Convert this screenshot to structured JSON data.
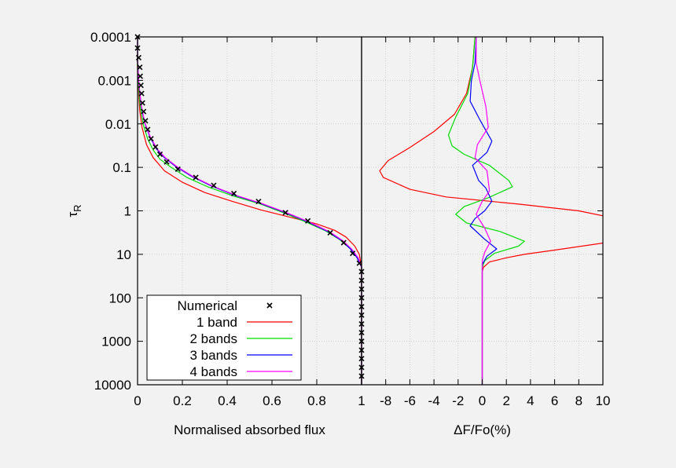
{
  "chart_data": [
    {
      "type": "line",
      "panel": "left",
      "xlabel": "Normalised absorbed flux",
      "ylabel": "τ",
      "ylabel_subscript": "R",
      "xlim": [
        0,
        1
      ],
      "ylim": [
        0.0001,
        10000
      ],
      "y_scale": "log",
      "y_inverted": true,
      "grid": true,
      "x_ticks": [
        {
          "value": 0,
          "label": "0"
        },
        {
          "value": 0.2,
          "label": "0.2"
        },
        {
          "value": 0.4,
          "label": "0.4"
        },
        {
          "value": 0.6,
          "label": "0.6"
        },
        {
          "value": 0.8,
          "label": "0.8"
        },
        {
          "value": 1,
          "label": "1"
        }
      ],
      "y_ticks": [
        {
          "value": 0.0001,
          "label": "0.0001"
        },
        {
          "value": 0.001,
          "label": "0.001"
        },
        {
          "value": 0.01,
          "label": "0.01"
        },
        {
          "value": 0.1,
          "label": "0.1"
        },
        {
          "value": 1,
          "label": "1"
        },
        {
          "value": 10,
          "label": "10"
        },
        {
          "value": 100,
          "label": "100"
        },
        {
          "value": 1000,
          "label": "1000"
        },
        {
          "value": 10000,
          "label": "10000"
        }
      ],
      "legend": {
        "position": "bottom-left",
        "entries": [
          {
            "label": "Numerical",
            "marker": "x",
            "color": "#000000"
          },
          {
            "label": "1 band",
            "color": "#ff0000"
          },
          {
            "label": "2 bands",
            "color": "#00dd00"
          },
          {
            "label": "3 bands",
            "color": "#0000ff"
          },
          {
            "label": "4 bands",
            "color": "#ff00ff"
          }
        ]
      },
      "series": [
        {
          "name": "Numerical",
          "marker": "x",
          "color": "#000000",
          "points": [
            [
              0.0,
              0.0001
            ],
            [
              0.0,
              0.00018
            ],
            [
              0.005,
              0.0003
            ],
            [
              0.01,
              0.0005
            ],
            [
              0.012,
              0.0008
            ],
            [
              0.015,
              0.0013
            ],
            [
              0.018,
              0.002
            ],
            [
              0.022,
              0.0033
            ],
            [
              0.027,
              0.0052
            ],
            [
              0.035,
              0.0085
            ],
            [
              0.045,
              0.0135
            ],
            [
              0.06,
              0.022
            ],
            [
              0.08,
              0.034
            ],
            [
              0.1,
              0.05
            ],
            [
              0.13,
              0.075
            ],
            [
              0.18,
              0.11
            ],
            [
              0.26,
              0.17
            ],
            [
              0.34,
              0.26
            ],
            [
              0.43,
              0.4
            ],
            [
              0.54,
              0.61
            ],
            [
              0.66,
              1.1
            ],
            [
              0.76,
              1.7
            ],
            [
              0.86,
              3.2
            ],
            [
              0.92,
              5.4
            ],
            [
              0.96,
              9.5
            ],
            [
              0.99,
              16
            ],
            [
              1.0,
              25
            ],
            [
              1.0,
              40
            ],
            [
              1.0,
              63
            ],
            [
              1.0,
              100
            ],
            [
              1.0,
              160
            ],
            [
              1.0,
              250
            ],
            [
              1.0,
              400
            ],
            [
              1.0,
              630
            ],
            [
              1.0,
              1000
            ],
            [
              1.0,
              1600
            ],
            [
              1.0,
              2500
            ],
            [
              1.0,
              4000
            ],
            [
              1.0,
              6300
            ]
          ]
        },
        {
          "name": "1 band",
          "color": "#ff0000",
          "points": [
            [
              0.0,
              0.0001
            ],
            [
              0.0,
              0.0005
            ],
            [
              0.005,
              0.002
            ],
            [
              0.01,
              0.005
            ],
            [
              0.02,
              0.012
            ],
            [
              0.04,
              0.03
            ],
            [
              0.07,
              0.06
            ],
            [
              0.12,
              0.12
            ],
            [
              0.2,
              0.22
            ],
            [
              0.3,
              0.38
            ],
            [
              0.42,
              0.6
            ],
            [
              0.55,
              0.95
            ],
            [
              0.68,
              1.4
            ],
            [
              0.8,
              2.0
            ],
            [
              0.88,
              2.8
            ],
            [
              0.93,
              4.0
            ],
            [
              0.97,
              6.5
            ],
            [
              0.99,
              10
            ],
            [
              1.0,
              20
            ],
            [
              1.0,
              10000
            ]
          ]
        },
        {
          "name": "2 bands",
          "color": "#00dd00",
          "points": [
            [
              0.0,
              0.0001
            ],
            [
              0.0,
              0.0005
            ],
            [
              0.005,
              0.0015
            ],
            [
              0.012,
              0.004
            ],
            [
              0.025,
              0.01
            ],
            [
              0.045,
              0.022
            ],
            [
              0.07,
              0.04
            ],
            [
              0.1,
              0.065
            ],
            [
              0.15,
              0.1
            ],
            [
              0.22,
              0.17
            ],
            [
              0.32,
              0.29
            ],
            [
              0.43,
              0.46
            ],
            [
              0.55,
              0.7
            ],
            [
              0.65,
              1.1
            ],
            [
              0.75,
              1.8
            ],
            [
              0.84,
              2.9
            ],
            [
              0.9,
              4.5
            ],
            [
              0.95,
              7.5
            ],
            [
              0.98,
              12
            ],
            [
              1.0,
              20
            ],
            [
              1.0,
              10000
            ]
          ]
        },
        {
          "name": "3 bands",
          "color": "#0000ff",
          "points": [
            [
              0.0,
              0.0001
            ],
            [
              0.0,
              0.0004
            ],
            [
              0.006,
              0.0012
            ],
            [
              0.015,
              0.0035
            ],
            [
              0.03,
              0.009
            ],
            [
              0.055,
              0.02
            ],
            [
              0.085,
              0.038
            ],
            [
              0.12,
              0.06
            ],
            [
              0.17,
              0.095
            ],
            [
              0.24,
              0.16
            ],
            [
              0.33,
              0.27
            ],
            [
              0.44,
              0.45
            ],
            [
              0.55,
              0.68
            ],
            [
              0.66,
              1.1
            ],
            [
              0.76,
              1.8
            ],
            [
              0.85,
              3.0
            ],
            [
              0.91,
              4.8
            ],
            [
              0.95,
              7.5
            ],
            [
              0.98,
              12
            ],
            [
              1.0,
              20
            ],
            [
              1.0,
              10000
            ]
          ]
        },
        {
          "name": "4 bands",
          "color": "#ff00ff",
          "points": [
            [
              0.0,
              0.0001
            ],
            [
              0.0,
              0.0004
            ],
            [
              0.006,
              0.0012
            ],
            [
              0.016,
              0.0036
            ],
            [
              0.032,
              0.0092
            ],
            [
              0.057,
              0.02
            ],
            [
              0.088,
              0.038
            ],
            [
              0.124,
              0.06
            ],
            [
              0.174,
              0.095
            ],
            [
              0.245,
              0.16
            ],
            [
              0.335,
              0.27
            ],
            [
              0.445,
              0.45
            ],
            [
              0.555,
              0.68
            ],
            [
              0.665,
              1.1
            ],
            [
              0.765,
              1.8
            ],
            [
              0.855,
              3.0
            ],
            [
              0.915,
              4.8
            ],
            [
              0.955,
              7.5
            ],
            [
              0.985,
              12
            ],
            [
              1.0,
              20
            ],
            [
              1.0,
              10000
            ]
          ]
        }
      ]
    },
    {
      "type": "line",
      "panel": "right",
      "xlabel": "ΔF/Fo(%)",
      "xlim": [
        -10,
        10
      ],
      "ylim": [
        0.0001,
        10000
      ],
      "y_scale": "log",
      "y_inverted": true,
      "grid": true,
      "x_ticks": [
        {
          "value": -8,
          "label": "-8"
        },
        {
          "value": -6,
          "label": "-6"
        },
        {
          "value": -4,
          "label": "-4"
        },
        {
          "value": -2,
          "label": "-2"
        },
        {
          "value": 0,
          "label": "0"
        },
        {
          "value": 2,
          "label": "2"
        },
        {
          "value": 4,
          "label": "4"
        },
        {
          "value": 6,
          "label": "6"
        },
        {
          "value": 8,
          "label": "8"
        },
        {
          "value": 10,
          "label": "10"
        }
      ],
      "series": [
        {
          "name": "1 band",
          "color": "#ff0000",
          "points": [
            [
              -0.6,
              0.0001
            ],
            [
              -0.8,
              0.0005
            ],
            [
              -1.3,
              0.002
            ],
            [
              -2.3,
              0.006
            ],
            [
              -4.0,
              0.015
            ],
            [
              -6.0,
              0.035
            ],
            [
              -7.8,
              0.07
            ],
            [
              -8.5,
              0.12
            ],
            [
              -8.2,
              0.17
            ],
            [
              -6.0,
              0.32
            ],
            [
              -3.0,
              0.48
            ],
            [
              3.0,
              0.7
            ],
            [
              8.0,
              1.0
            ],
            [
              10.0,
              1.3
            ]
          ],
          "points_lower": [
            [
              10.0,
              5.5
            ],
            [
              6.0,
              8.0
            ],
            [
              3.5,
              10
            ],
            [
              2.0,
              12
            ],
            [
              0.6,
              15
            ],
            [
              0.1,
              20
            ],
            [
              0.0,
              25
            ],
            [
              0.0,
              10000
            ]
          ]
        },
        {
          "name": "2 bands",
          "color": "#00dd00",
          "points": [
            [
              -0.6,
              0.0001
            ],
            [
              -0.8,
              0.0005
            ],
            [
              -1.2,
              0.002
            ],
            [
              -2.2,
              0.007
            ],
            [
              -2.8,
              0.018
            ],
            [
              -2.5,
              0.032
            ],
            [
              -1.5,
              0.05
            ],
            [
              0.6,
              0.09
            ],
            [
              2.2,
              0.2
            ],
            [
              2.5,
              0.28
            ],
            [
              0.5,
              0.5
            ],
            [
              -1.5,
              0.8
            ],
            [
              -2.2,
              1.2
            ],
            [
              -1.3,
              1.9
            ],
            [
              1.5,
              3.0
            ],
            [
              3.5,
              5.0
            ],
            [
              3.0,
              6.5
            ],
            [
              1.0,
              9.5
            ],
            [
              0.2,
              14
            ],
            [
              0.0,
              20
            ],
            [
              0.0,
              10000
            ]
          ]
        },
        {
          "name": "3 bands",
          "color": "#0000ff",
          "points": [
            [
              -0.5,
              0.0001
            ],
            [
              -0.6,
              0.0004
            ],
            [
              -0.9,
              0.001
            ],
            [
              -1.0,
              0.003
            ],
            [
              -0.2,
              0.008
            ],
            [
              0.8,
              0.025
            ],
            [
              0.4,
              0.045
            ],
            [
              -0.8,
              0.09
            ],
            [
              -0.3,
              0.2
            ],
            [
              0.3,
              0.3
            ],
            [
              0.8,
              0.6
            ],
            [
              0.2,
              1.0
            ],
            [
              -0.6,
              1.5
            ],
            [
              -1.0,
              2.2
            ],
            [
              0.2,
              4.5
            ],
            [
              1.2,
              7.5
            ],
            [
              0.4,
              11
            ],
            [
              0.0,
              17
            ],
            [
              0.0,
              10000
            ]
          ]
        },
        {
          "name": "4 bands",
          "color": "#ff00ff",
          "points": [
            [
              -0.5,
              0.0001
            ],
            [
              -0.5,
              0.0004
            ],
            [
              -0.2,
              0.001
            ],
            [
              0.3,
              0.004
            ],
            [
              0.5,
              0.012
            ],
            [
              -0.4,
              0.03
            ],
            [
              -0.6,
              0.06
            ],
            [
              0.4,
              0.12
            ],
            [
              0.6,
              0.35
            ],
            [
              0.0,
              0.6
            ],
            [
              -0.5,
              1.2
            ],
            [
              0.2,
              2.5
            ],
            [
              0.7,
              5.0
            ],
            [
              0.2,
              9.0
            ],
            [
              0.0,
              14
            ],
            [
              0.0,
              10000
            ]
          ]
        }
      ]
    }
  ]
}
